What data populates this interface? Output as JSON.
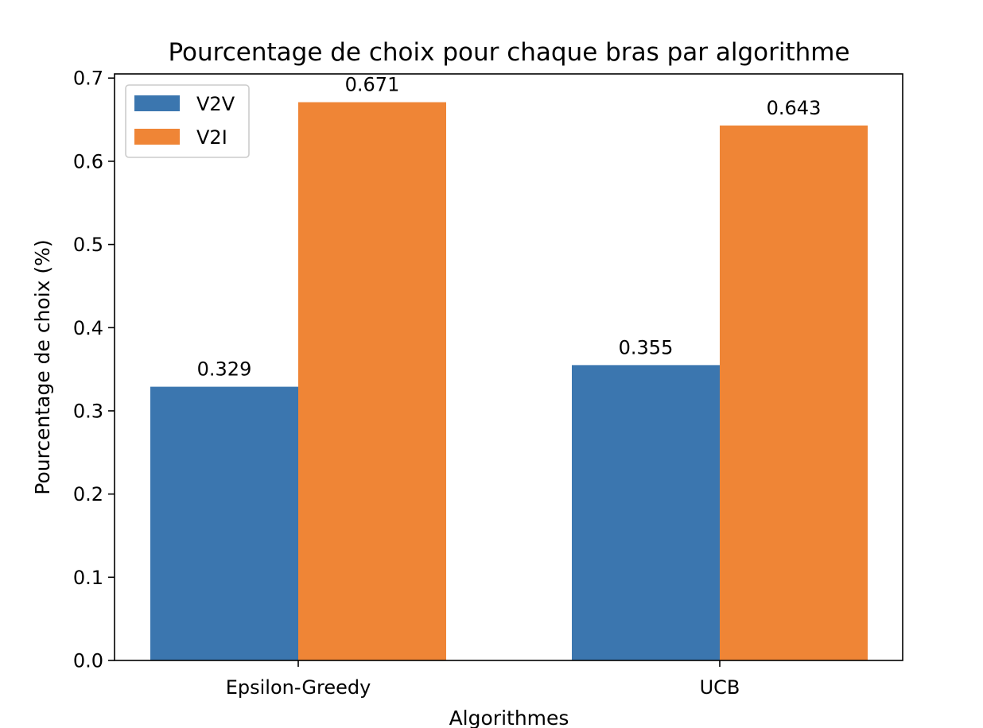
{
  "chart_data": {
    "type": "bar",
    "title": "Pourcentage de choix pour chaque bras par algorithme",
    "xlabel": "Algorithmes",
    "ylabel": "Pourcentage de choix (%)",
    "categories": [
      "Epsilon-Greedy",
      "UCB"
    ],
    "series": [
      {
        "name": "V2V",
        "color": "#3b76af",
        "values": [
          0.329,
          0.355
        ],
        "value_labels": [
          "0.329",
          "0.355"
        ]
      },
      {
        "name": "V2I",
        "color": "#ef8536",
        "values": [
          0.671,
          0.643
        ],
        "value_labels": [
          "0.671",
          "0.643"
        ]
      }
    ],
    "ylim": [
      0,
      0.705
    ],
    "yticks": [
      0.0,
      0.1,
      0.2,
      0.3,
      0.4,
      0.5,
      0.6,
      0.7
    ],
    "ytick_labels": [
      "0.0",
      "0.1",
      "0.2",
      "0.3",
      "0.4",
      "0.5",
      "0.6",
      "0.7"
    ],
    "grid": false,
    "legend_position": "top-left"
  }
}
